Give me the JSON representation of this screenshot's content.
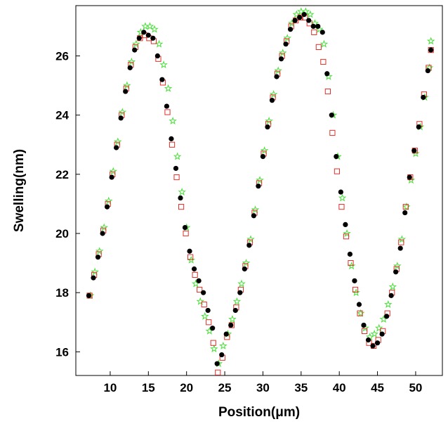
{
  "chart_data": {
    "type": "scatter",
    "title": "",
    "xlabel": "Position(μm)",
    "ylabel": "Swelling(nm)",
    "xlim": [
      5.5,
      53.5
    ],
    "ylim": [
      15.2,
      27.7
    ],
    "xticks": [
      10,
      15,
      20,
      25,
      30,
      35,
      40,
      45,
      50
    ],
    "yticks": [
      16,
      18,
      20,
      22,
      24,
      26
    ],
    "grid": false,
    "legend": "none",
    "series": [
      {
        "marker": "filled-circle",
        "color": "#000000",
        "x": [
          7.2,
          7.8,
          8.4,
          9.0,
          9.6,
          10.2,
          10.8,
          11.4,
          12.0,
          12.6,
          13.2,
          13.8,
          14.4,
          15.0,
          15.6,
          16.2,
          16.8,
          17.4,
          18.0,
          18.6,
          19.2,
          19.8,
          20.4,
          21.0,
          21.6,
          22.2,
          22.8,
          23.4,
          24.0,
          24.6,
          25.2,
          25.8,
          26.4,
          27.0,
          27.6,
          28.2,
          28.8,
          29.4,
          30.0,
          30.6,
          31.2,
          31.8,
          32.4,
          33.0,
          33.6,
          34.2,
          34.8,
          35.4,
          36.0,
          36.6,
          37.2,
          37.8,
          38.4,
          39.0,
          39.6,
          40.2,
          40.8,
          41.4,
          42.0,
          42.6,
          43.2,
          43.8,
          44.4,
          45.0,
          45.6,
          46.2,
          46.8,
          47.4,
          48.0,
          48.6,
          49.2,
          49.8,
          50.4,
          51.0,
          51.6,
          52.0
        ],
        "y": [
          17.9,
          18.5,
          19.2,
          20.0,
          20.9,
          21.9,
          22.9,
          23.9,
          24.8,
          25.6,
          26.2,
          26.6,
          26.8,
          26.7,
          26.6,
          26.0,
          25.2,
          24.3,
          23.2,
          22.2,
          21.2,
          20.2,
          19.4,
          18.8,
          18.4,
          18.0,
          17.4,
          16.8,
          15.6,
          15.9,
          16.6,
          16.9,
          17.4,
          18.0,
          18.8,
          19.6,
          20.6,
          21.6,
          22.6,
          23.6,
          24.5,
          25.3,
          25.9,
          26.4,
          26.9,
          27.2,
          27.3,
          27.4,
          27.2,
          27.0,
          27.0,
          26.8,
          25.4,
          24.0,
          22.6,
          21.4,
          20.3,
          19.3,
          18.4,
          17.6,
          16.9,
          16.4,
          16.2,
          16.3,
          16.6,
          17.2,
          17.9,
          18.7,
          19.5,
          20.7,
          21.9,
          22.8,
          23.6,
          24.6,
          25.5,
          26.2
        ]
      },
      {
        "marker": "open-square",
        "color": "#e0302a",
        "x": [
          7.3,
          7.9,
          8.5,
          9.1,
          9.7,
          10.3,
          10.9,
          11.5,
          12.1,
          12.7,
          13.3,
          13.9,
          14.5,
          15.1,
          15.7,
          16.3,
          16.9,
          17.5,
          18.1,
          18.7,
          19.3,
          19.9,
          20.5,
          21.1,
          21.7,
          22.3,
          22.9,
          23.5,
          24.1,
          24.7,
          25.3,
          25.9,
          26.5,
          27.1,
          27.7,
          28.3,
          28.9,
          29.5,
          30.1,
          30.7,
          31.3,
          31.9,
          32.5,
          33.1,
          33.7,
          34.3,
          34.9,
          35.5,
          36.1,
          36.7,
          37.3,
          37.9,
          38.5,
          39.1,
          39.7,
          40.3,
          40.9,
          41.5,
          42.1,
          42.7,
          43.3,
          43.9,
          44.5,
          45.1,
          45.7,
          46.3,
          46.9,
          47.5,
          48.1,
          48.7,
          49.3,
          49.9,
          50.5,
          51.1,
          51.7,
          52.0
        ],
        "y": [
          17.9,
          18.6,
          19.3,
          20.1,
          21.0,
          22.0,
          23.0,
          24.0,
          24.9,
          25.7,
          26.3,
          26.6,
          26.7,
          26.6,
          26.5,
          25.9,
          25.1,
          24.1,
          23.0,
          21.9,
          20.9,
          20.0,
          19.2,
          18.6,
          18.1,
          17.6,
          17.0,
          16.3,
          15.3,
          15.8,
          16.5,
          16.9,
          17.5,
          18.1,
          18.9,
          19.7,
          20.7,
          21.7,
          22.7,
          23.7,
          24.6,
          25.4,
          26.0,
          26.5,
          27.0,
          27.2,
          27.3,
          27.3,
          27.1,
          26.8,
          26.3,
          25.8,
          24.8,
          23.4,
          22.1,
          20.9,
          19.9,
          19.0,
          18.1,
          17.3,
          16.7,
          16.3,
          16.2,
          16.4,
          16.7,
          17.3,
          18.0,
          18.8,
          19.7,
          20.9,
          21.9,
          22.8,
          23.7,
          24.7,
          25.6,
          26.2
        ]
      },
      {
        "marker": "open-star",
        "color": "#49e039",
        "x": [
          7.4,
          8.0,
          8.6,
          9.2,
          9.8,
          10.4,
          11.0,
          11.6,
          12.2,
          12.8,
          13.4,
          14.0,
          14.6,
          15.2,
          15.8,
          16.4,
          17.0,
          17.6,
          18.2,
          18.8,
          19.4,
          20.0,
          20.6,
          21.2,
          21.8,
          22.4,
          23.0,
          23.6,
          24.2,
          24.8,
          25.4,
          26.0,
          26.6,
          27.2,
          27.8,
          28.4,
          29.0,
          29.6,
          30.2,
          30.8,
          31.4,
          32.0,
          32.6,
          33.2,
          33.8,
          34.4,
          35.0,
          35.6,
          36.2,
          36.8,
          37.4,
          38.0,
          38.6,
          39.2,
          39.8,
          40.4,
          41.0,
          41.6,
          42.2,
          42.8,
          43.4,
          44.0,
          44.6,
          45.2,
          45.8,
          46.4,
          47.0,
          47.6,
          48.2,
          48.8,
          49.4,
          50.0,
          50.6,
          51.2,
          51.8,
          52.0
        ],
        "y": [
          17.9,
          18.7,
          19.4,
          20.2,
          21.1,
          22.1,
          23.1,
          24.1,
          25.0,
          25.8,
          26.4,
          26.8,
          27.0,
          27.0,
          26.9,
          26.4,
          25.7,
          24.9,
          23.8,
          22.6,
          21.4,
          20.2,
          19.1,
          18.3,
          17.7,
          17.2,
          16.7,
          16.1,
          15.6,
          16.2,
          16.6,
          17.1,
          17.7,
          18.3,
          19.0,
          19.8,
          20.8,
          21.8,
          22.8,
          23.8,
          24.7,
          25.5,
          26.1,
          26.6,
          27.1,
          27.4,
          27.5,
          27.5,
          27.4,
          27.1,
          26.9,
          26.4,
          25.3,
          24.0,
          22.6,
          21.2,
          20.0,
          18.9,
          18.0,
          17.3,
          16.8,
          16.5,
          16.6,
          16.8,
          17.1,
          17.6,
          18.2,
          18.9,
          19.8,
          20.9,
          21.8,
          22.7,
          23.6,
          24.6,
          25.6,
          26.5
        ]
      }
    ]
  }
}
